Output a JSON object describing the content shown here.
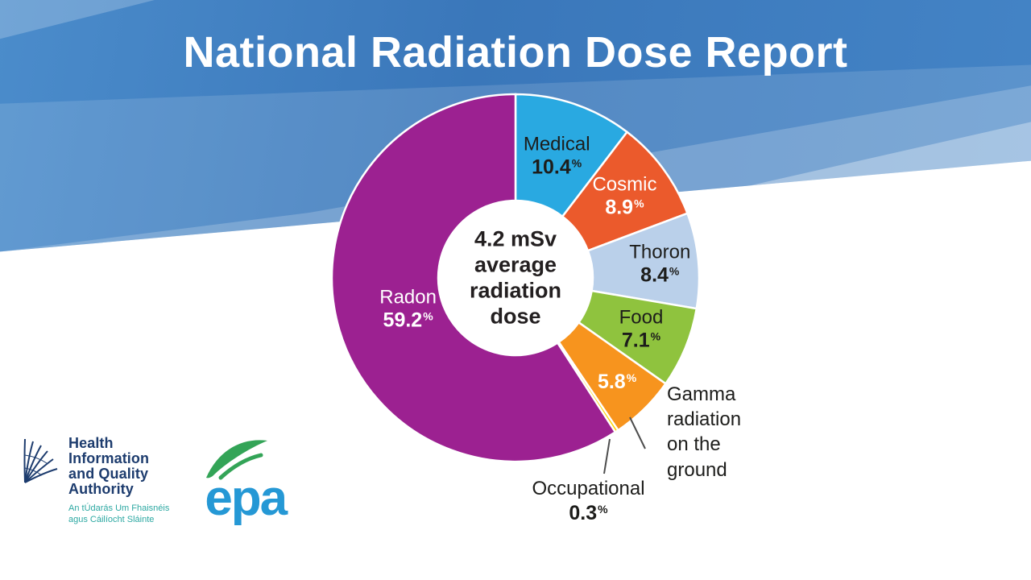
{
  "header": {
    "title": "National Radiation Dose Report"
  },
  "chart_data": {
    "type": "pie",
    "variant": "donut",
    "title": "National Radiation Dose Report",
    "unit": "%",
    "center_text": [
      "4.2 mSv",
      "average",
      "radiation",
      "dose"
    ],
    "slices": [
      {
        "label": "Medical",
        "value": 10.4,
        "color": "#29a9e1",
        "text_color": "#1d1d1b",
        "inside": "both"
      },
      {
        "label": "Cosmic",
        "value": 8.9,
        "color": "#eb5a2c",
        "text_color": "#ffffff",
        "inside": "both"
      },
      {
        "label": "Thoron",
        "value": 8.4,
        "color": "#bad0ea",
        "text_color": "#1d1d1b",
        "inside": "both"
      },
      {
        "label": "Food",
        "value": 7.1,
        "color": "#8fc33e",
        "text_color": "#1d1d1b",
        "inside": "both"
      },
      {
        "label": "Gamma radiation on the ground",
        "value": 5.8,
        "color": "#f7941e",
        "text_color": "#ffffff",
        "inside": "value"
      },
      {
        "label": "Occupational",
        "value": 0.3,
        "color": "#ffd400",
        "text_color": "#1d1d1b",
        "inside": "none"
      },
      {
        "label": "Radon",
        "value": 59.2,
        "color": "#9c2191",
        "text_color": "#ffffff",
        "inside": "both"
      }
    ]
  },
  "footer_logos": {
    "hiqa": {
      "name_lines": [
        "Health",
        "Information",
        "and Quality",
        "Authority"
      ],
      "subtitle_lines": [
        "An tÚdarás Um Fhaisnéis",
        "agus Cáilíocht Sláinte"
      ],
      "name_color": "#1d3c6e",
      "subtitle_color": "#2ca8a2",
      "icon_color": "#1d3c6e"
    },
    "epa": {
      "wordmark": "epa",
      "wordmark_color": "#2598d5",
      "swoosh_color": "#33a457"
    }
  }
}
